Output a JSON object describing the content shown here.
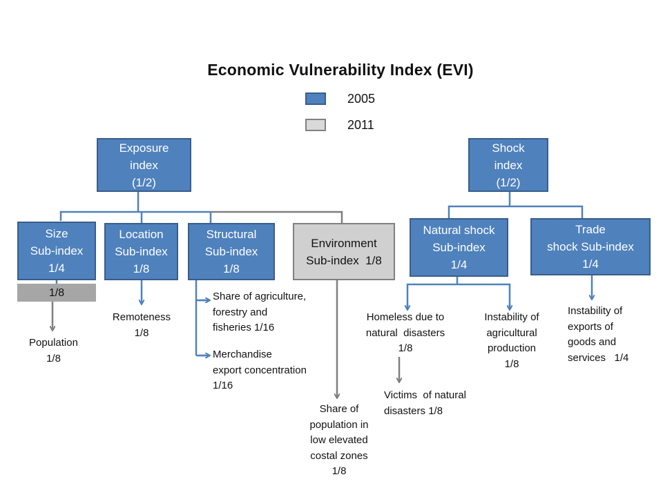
{
  "title": "Economic Vulnerability  Index (EVI)",
  "legend": [
    {
      "label": "2005",
      "color": "#4f81bd"
    },
    {
      "label": "2011",
      "color": "#d9d9d9"
    }
  ],
  "colors": {
    "blue": "#4f81bd",
    "grey_line": "#7f7f7f"
  },
  "boxes": {
    "exposure": [
      "Exposure",
      "index",
      "(1/2)"
    ],
    "shock": [
      "Shock",
      "index",
      "(1/2)"
    ],
    "size": [
      "Size",
      "Sub-index",
      "1/4"
    ],
    "location": [
      "Location",
      "Sub-index",
      "1/8"
    ],
    "structural": [
      "Structural",
      "Sub-index",
      "1/8"
    ],
    "environment": [
      "Environment",
      "Sub-index  1/8"
    ],
    "natural": [
      "Natural shock",
      "Sub-index",
      "1/4"
    ],
    "trade": [
      "Trade",
      "shock Sub-index",
      "1/4"
    ],
    "size_2011": "1/8"
  },
  "leaves": {
    "population": [
      "Population",
      "1/8"
    ],
    "remoteness": [
      "Remoteness",
      "1/8"
    ],
    "agriculture_share": [
      "Share of agriculture,",
      "forestry and",
      "fisheries 1/16"
    ],
    "merchandise": [
      "Merchandise",
      "export concentration",
      "1/16"
    ],
    "coastal": [
      "Share of",
      "population in",
      "low elevated",
      "costal zones",
      "1/8"
    ],
    "homeless": [
      "Homeless due to",
      "natural  disasters",
      "1/8"
    ],
    "victims": [
      "Victims  of natural",
      "disasters 1/8"
    ],
    "agri_instability": [
      "Instability of",
      "agricultural",
      "production",
      "1/8"
    ],
    "exports_instability": [
      "Instability of",
      "exports of",
      "goods and",
      "services   1/4"
    ]
  }
}
